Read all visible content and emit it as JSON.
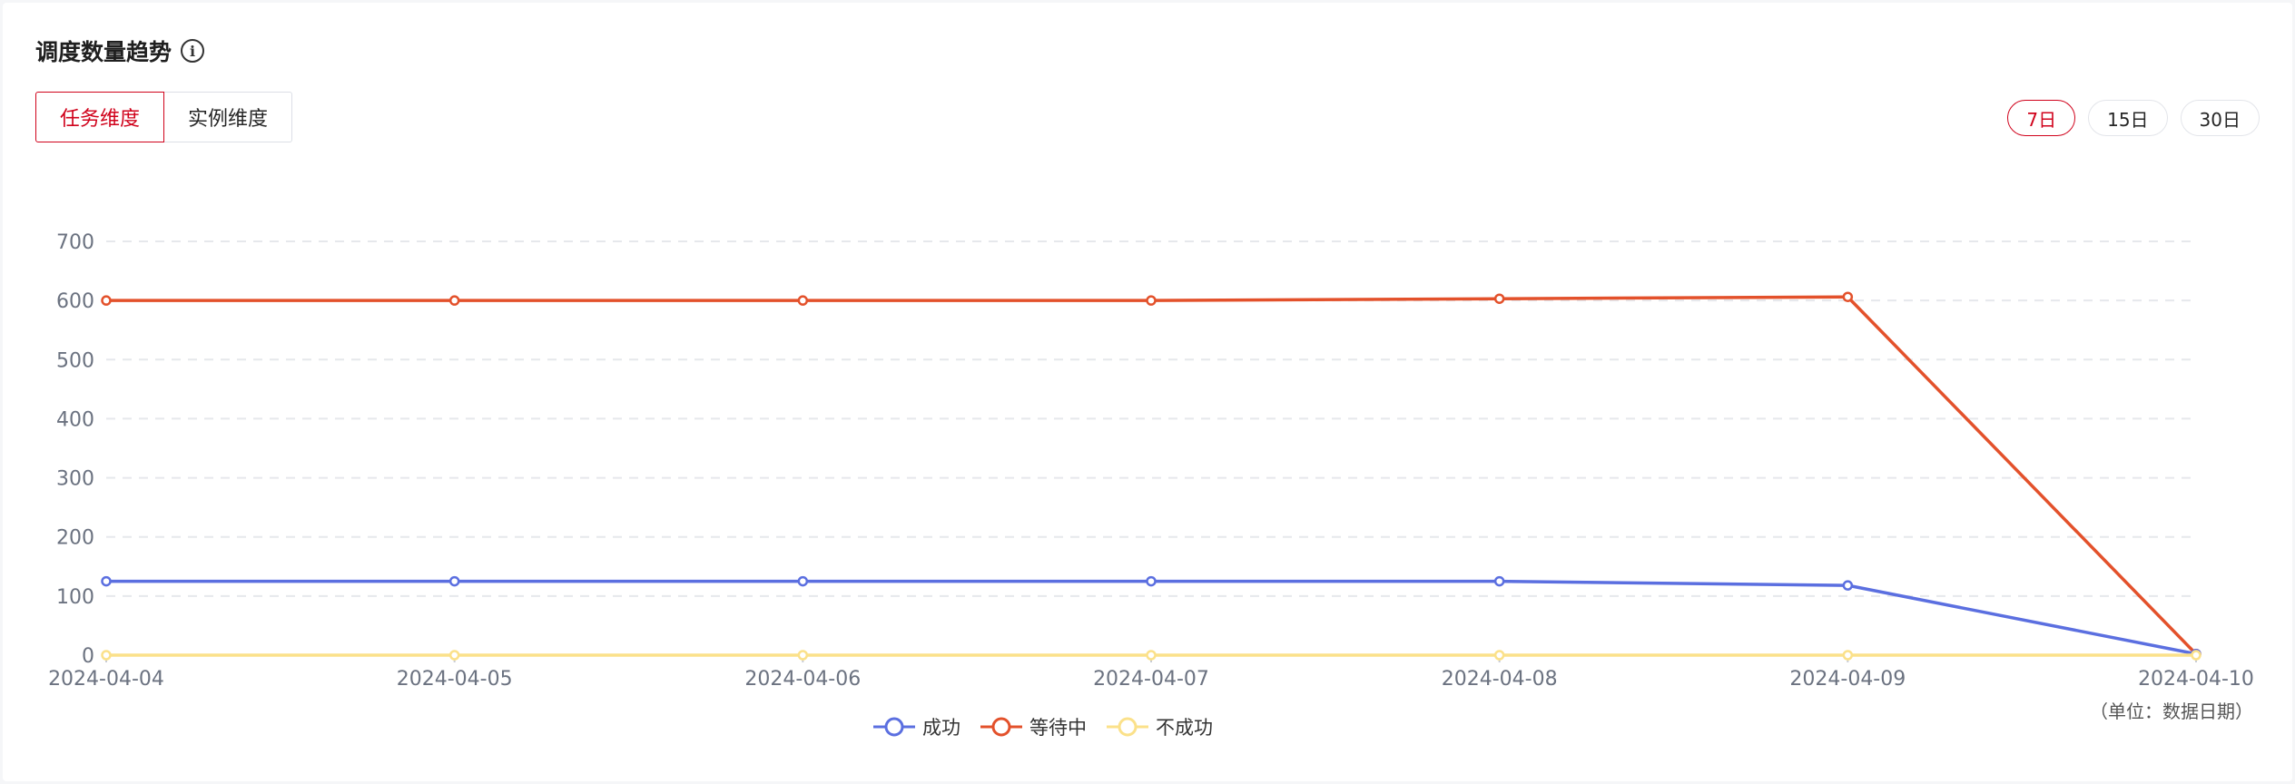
{
  "header": {
    "title": "调度数量趋势",
    "info_icon": "info-icon"
  },
  "dimension_tabs": [
    {
      "label": "任务维度",
      "active": true
    },
    {
      "label": "实例维度",
      "active": false
    }
  ],
  "range_buttons": [
    {
      "label": "7日",
      "active": true
    },
    {
      "label": "15日",
      "active": false
    },
    {
      "label": "30日",
      "active": false
    }
  ],
  "colors": {
    "accent": "#d0021b",
    "success": "#5b6fe0",
    "waiting": "#e3512b",
    "failed": "#fbe18a"
  },
  "unit_note": "（单位：数据日期）",
  "chart_data": {
    "type": "line",
    "x": [
      "2024-04-04",
      "2024-04-05",
      "2024-04-06",
      "2024-04-07",
      "2024-04-08",
      "2024-04-09",
      "2024-04-10"
    ],
    "ylim": [
      0,
      700
    ],
    "yticks": [
      0,
      100,
      200,
      300,
      400,
      500,
      600,
      700
    ],
    "grid": true,
    "legend_position": "bottom",
    "series": [
      {
        "name": "成功",
        "color": "#5b6fe0",
        "values": [
          125,
          125,
          125,
          125,
          125,
          118,
          2
        ]
      },
      {
        "name": "等待中",
        "color": "#e3512b",
        "values": [
          600,
          600,
          600,
          600,
          603,
          606,
          2
        ]
      },
      {
        "name": "不成功",
        "color": "#fbe18a",
        "values": [
          0,
          0,
          0,
          0,
          0,
          0,
          0
        ]
      }
    ]
  }
}
